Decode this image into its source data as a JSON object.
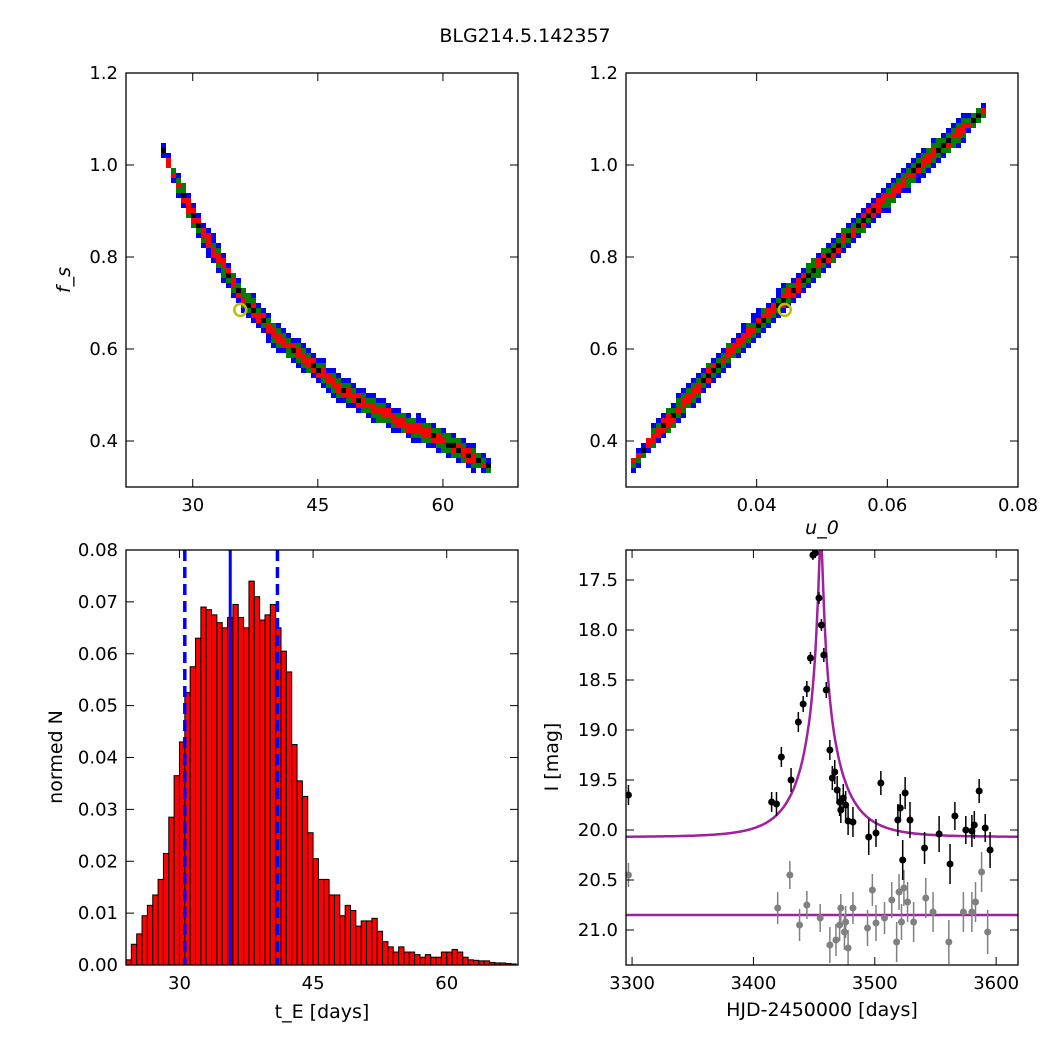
{
  "figure_title": "BLG214.5.142357",
  "colors": {
    "blue": "#0000ff",
    "green": "#007f00",
    "red": "#ff0000",
    "black": "#000000",
    "marker": "#bfbf00",
    "hist": "#ff0000",
    "model": "#a020a0",
    "grey": "#808080"
  },
  "chart_data": [
    {
      "type": "heatmap",
      "panel": "top-left",
      "xlabel": "",
      "ylabel": "f_s",
      "xlim": [
        22,
        69
      ],
      "ylim": [
        0.3,
        1.2
      ],
      "xticks": [
        "30",
        "45",
        "60"
      ],
      "yticks": [
        "0.4",
        "0.6",
        "0.8",
        "1.0",
        "1.2"
      ],
      "contour_levels": [
        "blue",
        "green",
        "red",
        "black"
      ],
      "ridge": {
        "x": [
          26,
          28,
          30,
          32,
          34,
          36,
          38,
          40,
          42,
          44,
          46,
          48,
          50,
          52,
          54,
          56,
          58,
          60,
          62,
          64,
          66
        ],
        "y": [
          1.05,
          0.97,
          0.89,
          0.83,
          0.77,
          0.71,
          0.67,
          0.63,
          0.6,
          0.57,
          0.54,
          0.51,
          0.49,
          0.47,
          0.45,
          0.43,
          0.42,
          0.4,
          0.38,
          0.36,
          0.34
        ]
      },
      "best_fit": {
        "x": 35.7,
        "y": 0.685
      }
    },
    {
      "type": "heatmap",
      "panel": "top-right",
      "xlabel": "u_0",
      "ylabel": "",
      "xlim": [
        0.02,
        0.08
      ],
      "ylim": [
        0.3,
        1.2
      ],
      "xticks": [
        "0.04",
        "0.06",
        "0.08"
      ],
      "yticks": [
        "0.4",
        "0.6",
        "0.8",
        "1.0",
        "1.2"
      ],
      "contour_levels": [
        "blue",
        "green",
        "red",
        "black"
      ],
      "ridge": {
        "x": [
          0.021,
          0.025,
          0.03,
          0.035,
          0.04,
          0.045,
          0.05,
          0.055,
          0.06,
          0.065,
          0.07,
          0.075
        ],
        "y": [
          0.35,
          0.42,
          0.5,
          0.58,
          0.65,
          0.72,
          0.79,
          0.86,
          0.93,
          1.0,
          1.06,
          1.12
        ]
      },
      "best_fit": {
        "x": 0.0443,
        "y": 0.685
      }
    },
    {
      "type": "bar",
      "panel": "bottom-left",
      "xlabel": "t_E [days]",
      "ylabel": "normed N",
      "xlim": [
        24,
        68
      ],
      "ylim": [
        0,
        0.08
      ],
      "xticks": [
        "30",
        "45",
        "60"
      ],
      "yticks": [
        "0.00",
        "0.01",
        "0.02",
        "0.03",
        "0.04",
        "0.05",
        "0.06",
        "0.07",
        "0.08"
      ],
      "bin_start": 24,
      "bin_width": 0.6,
      "values": [
        0.001,
        0.004,
        0.006,
        0.0095,
        0.0115,
        0.0135,
        0.0165,
        0.0215,
        0.0285,
        0.0365,
        0.043,
        0.0525,
        0.0575,
        0.063,
        0.069,
        0.0685,
        0.0675,
        0.066,
        0.065,
        0.067,
        0.0695,
        0.067,
        0.065,
        0.074,
        0.071,
        0.0665,
        0.0675,
        0.0695,
        0.065,
        0.0605,
        0.0565,
        0.0425,
        0.0355,
        0.0325,
        0.0255,
        0.0205,
        0.0165,
        0.0165,
        0.0135,
        0.0135,
        0.0095,
        0.0115,
        0.0105,
        0.0075,
        0.0085,
        0.0085,
        0.009,
        0.0065,
        0.0045,
        0.0035,
        0.0025,
        0.0035,
        0.0025,
        0.0025,
        0.002,
        0.0015,
        0.002,
        0.0015,
        0.0015,
        0.0025,
        0.0025,
        0.003,
        0.0025,
        0.0015,
        0.001,
        0.0009,
        0.0008,
        0.0008,
        0.0005,
        0.0004,
        0.0004,
        0.0003,
        0.0002
      ],
      "vlines": {
        "solid": 35.7,
        "dashed": [
          30.6,
          41.0
        ]
      }
    },
    {
      "type": "scatter",
      "panel": "bottom-right",
      "xlabel": "HJD-2450000 [days]",
      "ylabel": "I [mag]",
      "xlim": [
        3295,
        3618
      ],
      "ylim": [
        21.35,
        17.2
      ],
      "xticks": [
        "3300",
        "3400",
        "3500",
        "3600"
      ],
      "yticks": [
        "17.5",
        "18.0",
        "18.5",
        "19.0",
        "19.5",
        "20.0",
        "20.5",
        "21.0"
      ],
      "model": {
        "t0": 3455.5,
        "tE": 35.7,
        "u0": 0.0443,
        "baseline": 20.07,
        "fs": 0.685
      },
      "model2_level": 20.85,
      "series": [
        {
          "name": "",
          "x": [
            3297,
            3415,
            3419,
            3423,
            3431,
            3437,
            3441,
            3444,
            3447,
            3449,
            3451,
            3454,
            3456,
            3458,
            3460,
            3463,
            3465,
            3467,
            3469,
            3471,
            3472,
            3474,
            3476,
            3478,
            3482,
            3495,
            3501,
            3505,
            3519,
            3521,
            3523,
            3525,
            3529,
            3541,
            3553,
            3562,
            3566,
            3575,
            3580,
            3582,
            3586,
            3591,
            3595
          ],
          "y": [
            19.65,
            19.72,
            19.74,
            19.27,
            19.5,
            18.92,
            18.74,
            18.59,
            18.28,
            17.25,
            17.23,
            17.68,
            17.95,
            18.25,
            18.6,
            19.2,
            19.48,
            19.42,
            19.6,
            19.72,
            19.8,
            19.68,
            19.75,
            19.91,
            19.92,
            20.07,
            20.03,
            19.53,
            19.9,
            19.78,
            20.3,
            19.63,
            19.9,
            20.18,
            20.04,
            20.34,
            19.86,
            20.0,
            20.01,
            19.95,
            19.61,
            19.98,
            20.2
          ],
          "err": [
            0.1,
            0.1,
            0.12,
            0.1,
            0.12,
            0.1,
            0.08,
            0.08,
            0.06,
            0.05,
            0.05,
            0.06,
            0.06,
            0.07,
            0.08,
            0.1,
            0.12,
            0.12,
            0.14,
            0.14,
            0.13,
            0.14,
            0.14,
            0.14,
            0.15,
            0.18,
            0.14,
            0.12,
            0.16,
            0.14,
            0.2,
            0.16,
            0.18,
            0.16,
            0.18,
            0.2,
            0.14,
            0.14,
            0.16,
            0.14,
            0.12,
            0.14,
            0.18
          ]
        },
        {
          "name": "",
          "x": [
            3297,
            3420,
            3430,
            3438,
            3444,
            3455,
            3463,
            3468,
            3471,
            3472,
            3475,
            3476,
            3478,
            3482,
            3494,
            3498,
            3501,
            3508,
            3514,
            3518,
            3520,
            3522,
            3524,
            3527,
            3532,
            3542,
            3548,
            3561,
            3573,
            3580,
            3583,
            3588,
            3593
          ],
          "y": [
            20.45,
            20.78,
            20.45,
            20.95,
            20.75,
            20.88,
            21.15,
            21.1,
            20.95,
            20.78,
            21.02,
            20.92,
            21.18,
            20.78,
            20.98,
            20.6,
            20.93,
            20.88,
            20.7,
            21.12,
            20.62,
            20.92,
            20.58,
            20.72,
            20.92,
            20.68,
            20.82,
            21.12,
            20.82,
            20.82,
            20.72,
            20.42,
            21.02
          ],
          "err": [
            0.12,
            0.16,
            0.14,
            0.16,
            0.14,
            0.14,
            0.18,
            0.16,
            0.16,
            0.14,
            0.18,
            0.16,
            0.18,
            0.16,
            0.18,
            0.16,
            0.18,
            0.16,
            0.18,
            0.2,
            0.18,
            0.18,
            0.18,
            0.2,
            0.2,
            0.2,
            0.2,
            0.22,
            0.2,
            0.2,
            0.2,
            0.2,
            0.22
          ]
        }
      ]
    }
  ]
}
